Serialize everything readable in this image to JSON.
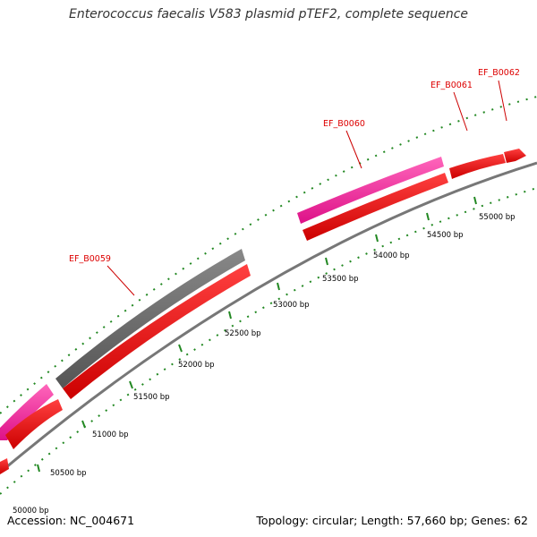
{
  "title": "Enterococcus faecalis V583 plasmid pTEF2, complete sequence",
  "footer": {
    "accession": "Accession: NC_004671",
    "summary": "Topology: circular; Length: 57,660 bp; Genes: 62"
  },
  "colors": {
    "backbone": "#777777",
    "gene_red": "#ee0000",
    "gene_pink": "#ee1199",
    "gene_gray": "#666666",
    "tick": "#228822",
    "label": "#dd0000"
  },
  "scale_labels": [
    "50000 bp",
    "50500 bp",
    "51000 bp",
    "51500 bp",
    "52000 bp",
    "52500 bp",
    "53000 bp",
    "53500 bp",
    "54000 bp",
    "54500 bp",
    "55000 bp"
  ],
  "scale_positions_bp": [
    50000,
    50500,
    51000,
    51500,
    52000,
    52500,
    53000,
    53500,
    54000,
    54500,
    55000
  ],
  "gene_labels": [
    {
      "text": "EF_B0059"
    },
    {
      "text": "EF_B0060"
    },
    {
      "text": "EF_B0061"
    },
    {
      "text": "EF_B0062"
    }
  ]
}
